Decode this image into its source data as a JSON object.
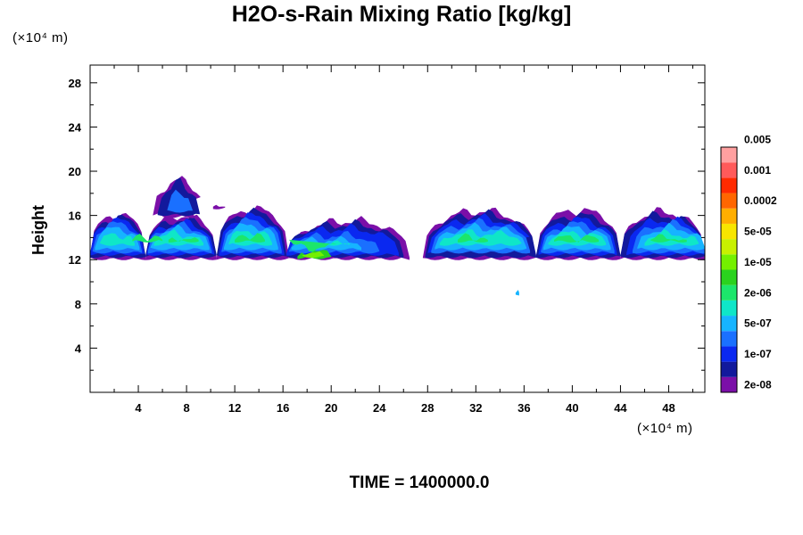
{
  "chart_data": {
    "type": "heatmap",
    "title": "H2O-s-Rain Mixing Ratio [kg/kg]",
    "xlabel": "",
    "ylabel": "Height",
    "x_unit": "(×10⁴ m)",
    "y_unit": "(×10⁴ m)",
    "xlim": [
      0,
      51
    ],
    "ylim": [
      0,
      29.6
    ],
    "x_ticks": [
      4,
      8,
      12,
      16,
      20,
      24,
      28,
      32,
      36,
      40,
      44,
      48
    ],
    "y_ticks": [
      4,
      8,
      12,
      16,
      20,
      24,
      28
    ],
    "colorbar": {
      "levels": [
        "2e-08",
        "1e-07",
        "5e-07",
        "2e-06",
        "1e-05",
        "5e-05",
        "0.0002",
        "0.001",
        "0.005"
      ],
      "colors": [
        "#7b0fa8",
        "#12199c",
        "#0a28f0",
        "#1a70ff",
        "#16b4ff",
        "#0fe6c8",
        "#1ce66b",
        "#2ad21e",
        "#74f000",
        "#c8f000",
        "#f8e600",
        "#ffae00",
        "#ff6600",
        "#ff2a00",
        "#ff5a5a",
        "#ffa0a0"
      ]
    },
    "layers": [
      {
        "level": 0,
        "y_base": 12.2,
        "segments": [
          [
            0,
            4.6,
            16.1
          ],
          [
            4.6,
            10.5,
            16.0
          ],
          [
            10.5,
            16.5,
            16.6
          ],
          [
            16.5,
            26.5,
            15.5
          ],
          [
            27.6,
            37,
            16.4
          ],
          [
            37,
            44,
            16.5
          ],
          [
            44,
            51,
            16.3
          ]
        ]
      },
      {
        "level": 1,
        "y_base": 12.4,
        "segments": [
          [
            0,
            4.6,
            15.8
          ],
          [
            4.6,
            10.5,
            15.6
          ],
          [
            10.5,
            16.3,
            16.3
          ],
          [
            16.3,
            26,
            15.2
          ],
          [
            27.8,
            37,
            16.1
          ],
          [
            37,
            44,
            16.0
          ],
          [
            44,
            51,
            16.0
          ]
        ]
      },
      {
        "level": 2,
        "y_base": 12.6,
        "segments": [
          [
            0,
            4.5,
            15.5
          ],
          [
            4.7,
            10.3,
            15.3
          ],
          [
            10.7,
            16.1,
            15.9
          ],
          [
            16.3,
            25.6,
            14.8
          ],
          [
            28,
            36.8,
            15.7
          ],
          [
            37.2,
            43.7,
            15.6
          ],
          [
            44.5,
            51,
            15.6
          ]
        ]
      },
      {
        "level": 3,
        "y_base": 12.8,
        "segments": [
          [
            0.2,
            4.3,
            15.2
          ],
          [
            4.8,
            10.1,
            15.0
          ],
          [
            10.9,
            15.9,
            15.5
          ],
          [
            16.5,
            24,
            14.2
          ],
          [
            28.3,
            36.5,
            15.3
          ],
          [
            37.4,
            43.5,
            15.2
          ],
          [
            45,
            51,
            15.2
          ]
        ]
      },
      {
        "level": 4,
        "y_base": 13.1,
        "segments": [
          [
            0.4,
            4.1,
            14.8
          ],
          [
            5,
            9.9,
            14.7
          ],
          [
            11.1,
            15.6,
            15.1
          ],
          [
            16.7,
            22.5,
            13.8
          ],
          [
            28.6,
            36.2,
            14.9
          ],
          [
            37.6,
            43.2,
            14.8
          ],
          [
            45.4,
            51,
            14.8
          ]
        ]
      },
      {
        "level": 5,
        "y_base": 13.5,
        "segments": [
          [
            0.8,
            3.7,
            14.3
          ],
          [
            5.3,
            9.4,
            14.3
          ],
          [
            11.5,
            15.1,
            14.6
          ],
          [
            17,
            21.5,
            13.4
          ],
          [
            29,
            35.8,
            14.4
          ],
          [
            38,
            42.8,
            14.4
          ],
          [
            46,
            50.5,
            14.3
          ]
        ]
      },
      {
        "level": 6,
        "y_base": 13.8,
        "segments": [
          [
            3.5,
            6.0,
            14.2
          ],
          [
            6.5,
            9.0,
            14.0
          ],
          [
            12.0,
            14.5,
            14.3
          ],
          [
            16.5,
            20.8,
            13.1
          ],
          [
            30.5,
            33.0,
            14.1
          ],
          [
            38.5,
            42.2,
            14.1
          ],
          [
            46.5,
            49.5,
            14.0
          ]
        ]
      },
      {
        "level": 7,
        "y_base": 12.3,
        "segments": [
          [
            17.2,
            20.0,
            12.8
          ]
        ]
      },
      {
        "level": 8,
        "y_base": 12.4,
        "segments": [
          [
            17.6,
            19.4,
            12.6
          ]
        ]
      },
      {
        "level": 0,
        "y_base": 16.0,
        "segments": [
          [
            5.2,
            9.5,
            18.8
          ],
          [
            6.0,
            8.6,
            19.3
          ]
        ]
      },
      {
        "level": 1,
        "y_base": 16.2,
        "segments": [
          [
            5.6,
            9.1,
            18.5
          ],
          [
            6.4,
            8.2,
            19.0
          ]
        ]
      },
      {
        "level": 3,
        "y_base": 16.5,
        "segments": [
          [
            6.4,
            8.5,
            18.0
          ]
        ]
      },
      {
        "level": 0,
        "y_base": 16.8,
        "segments": [
          [
            10.2,
            11.2,
            17.1
          ]
        ]
      },
      {
        "level": 4,
        "y_base": 9.0,
        "segments": [
          [
            35.3,
            35.6,
            9.2
          ]
        ]
      }
    ]
  },
  "footer": {
    "time_text": "TIME = 1400000.0"
  }
}
